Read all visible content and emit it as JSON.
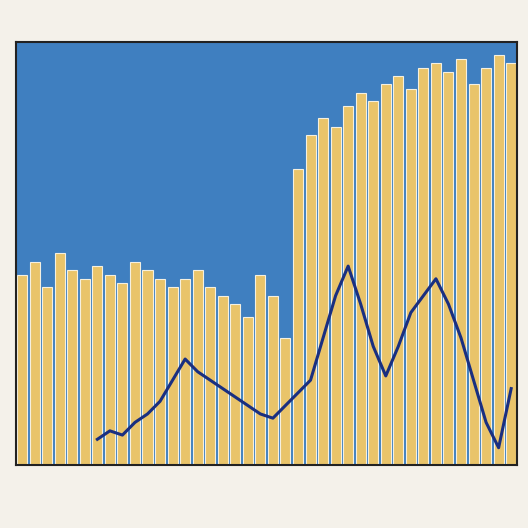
{
  "chart_data": {
    "type": "bar",
    "x": [
      0,
      1,
      2,
      3,
      4,
      5,
      6,
      7,
      8,
      9,
      10,
      11,
      12,
      13,
      14,
      15,
      16,
      17,
      18,
      19,
      20,
      21,
      22,
      23,
      24,
      25,
      26,
      27,
      28,
      29,
      30,
      31,
      32,
      33,
      34,
      35,
      36,
      37,
      38,
      39
    ],
    "xlim": [
      -0.5,
      39.5
    ],
    "ylim": [
      0,
      100
    ],
    "tick_labels": false,
    "series": [
      {
        "type": "bar",
        "color": "#e9c46a",
        "values": [
          45,
          48,
          42,
          50,
          46,
          44,
          47,
          45,
          43,
          48,
          46,
          44,
          42,
          44,
          46,
          42,
          40,
          38,
          35,
          45,
          40,
          30,
          70,
          78,
          82,
          80,
          85,
          88,
          86,
          90,
          92,
          89,
          94,
          95,
          93,
          96,
          90,
          94,
          97,
          95
        ]
      },
      {
        "type": "line",
        "color": "#1a2f80",
        "line_style": "solid",
        "values": [
          null,
          null,
          null,
          null,
          null,
          null,
          6,
          8,
          7,
          10,
          12,
          15,
          20,
          25,
          22,
          20,
          18,
          16,
          14,
          12,
          11,
          14,
          17,
          20,
          30,
          40,
          47,
          38,
          28,
          21,
          28,
          36,
          40,
          44,
          38,
          30,
          20,
          10,
          4,
          18
        ]
      }
    ]
  }
}
